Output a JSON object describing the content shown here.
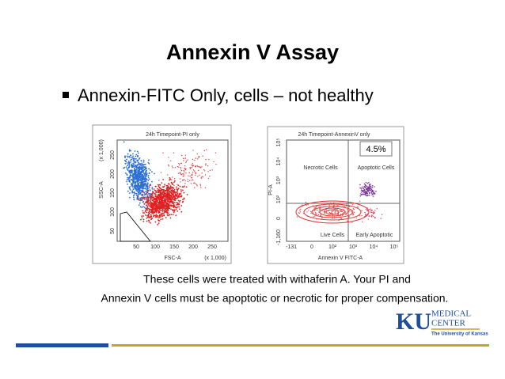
{
  "slide": {
    "title": "Annexin V Assay",
    "bullet": "Annexin-FITC Only, cells – not healthy",
    "plot1": {
      "title": "24h Timepoint-PI only",
      "y_label": "SSC-A",
      "x_label": "FSC-A",
      "y_scale": "(x 1,000)",
      "x_scale": "(x 1,000)",
      "gate": "P1",
      "yticks": [
        "50",
        "100",
        "150",
        "200",
        "250"
      ],
      "xticks": [
        "50",
        "100",
        "150",
        "200",
        "250"
      ]
    },
    "plot2": {
      "title": "24h Timepoint-AnnexinV only",
      "percent": "4.5%",
      "q_ul": "Necrotic Cells",
      "q_ur": "Apoptotic Cells",
      "q_ll": "Live Cells",
      "q_lr": "Early Apoptotic",
      "y_label": "PI-A",
      "x_label": "Annexin V FITC-A",
      "yticks": [
        "-1,160",
        "0",
        "10²",
        "10³",
        "10⁴",
        "10⁵"
      ],
      "xticks": [
        "-131",
        "0",
        "10²",
        "10³",
        "10⁴",
        "10⁵"
      ]
    },
    "caption": [
      "These cells were treated with withaferin A. Your PI and",
      "Annexin V cells must be apoptotic or necrotic for proper compensation."
    ],
    "logo": {
      "mark": "KU",
      "name": [
        "MEDICAL",
        "CENTER"
      ],
      "university": "The University of Kansas"
    }
  }
}
